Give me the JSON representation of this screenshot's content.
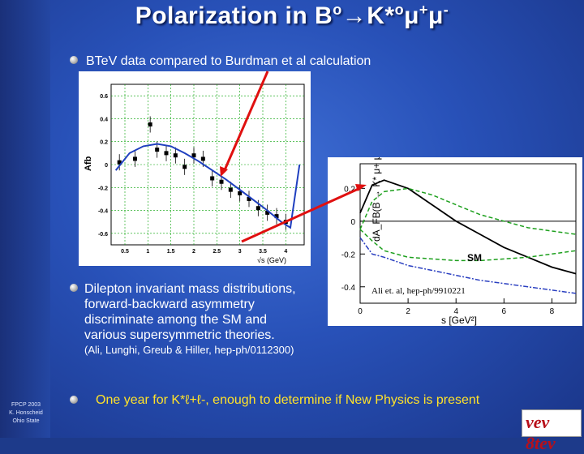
{
  "title": {
    "main": "Polarization in B",
    "sup1": "o",
    "arrow": "→",
    "k": "K*",
    "sup2": "o",
    "mu": "μ",
    "sup3": "+",
    "mu2": "μ",
    "sup4": "-"
  },
  "bullets": {
    "b1": "BTeV data compared to Burdman et al calculation",
    "b2_lines": [
      "Dilepton invariant mass distributions,",
      "forward-backward asymmetry",
      "discriminate among the SM and",
      "various supersymmetric theories."
    ],
    "b2_ref": "(Ali, Lunghi, Greub & Hiller, hep-ph/0112300)",
    "b3": "One year for K*ℓ+ℓ-, enough to determine if New Physics is present"
  },
  "footer": {
    "line1": "FPCP 2003",
    "line2": "K. Honscheid",
    "line3": "Ohio State"
  },
  "logo": {
    "text": "vev 8tev"
  },
  "left_plot": {
    "ylabel": "Afb",
    "xlabel": "√s (GeV)",
    "yticks": [
      "0.6",
      "0.4",
      "0.2",
      "0",
      "-0.2",
      "-0.4",
      "-0.6"
    ],
    "xticks": [
      "0.5",
      "1",
      "1.5",
      "2",
      "2.5",
      "3",
      "3.5",
      "4"
    ]
  },
  "right_plot": {
    "ylabel": "dA_FB(B → K* μ+ μ-)/ds",
    "xlabel": "s [GeV²]",
    "yticks": [
      "0.2",
      "0",
      "-0.2",
      "-0.4"
    ],
    "xticks": [
      "0",
      "2",
      "4",
      "6",
      "8"
    ],
    "label_sm": "SM",
    "caption": "Ali et. al, hep-ph/9910221"
  },
  "chart_data": [
    {
      "type": "scatter",
      "xlabel": "√s (GeV)",
      "ylabel": "Afb",
      "xlim": [
        0.2,
        4.4
      ],
      "ylim": [
        -0.7,
        0.7
      ],
      "series": [
        {
          "values": [
            [
              0.38,
              0.02
            ],
            [
              0.72,
              0.05
            ],
            [
              1.05,
              0.35
            ],
            [
              1.2,
              0.13
            ],
            [
              1.4,
              0.1
            ],
            [
              1.6,
              0.08
            ],
            [
              1.8,
              -0.02
            ],
            [
              2.0,
              0.08
            ],
            [
              2.2,
              0.05
            ],
            [
              2.4,
              -0.12
            ],
            [
              2.6,
              -0.15
            ],
            [
              2.8,
              -0.22
            ],
            [
              3.0,
              -0.25
            ],
            [
              3.2,
              -0.3
            ],
            [
              3.4,
              -0.38
            ],
            [
              3.6,
              -0.42
            ],
            [
              3.8,
              -0.45
            ],
            [
              4.0,
              -0.5
            ]
          ]
        },
        {
          "values": [
            [
              0.3,
              -0.05
            ],
            [
              0.6,
              0.1
            ],
            [
              0.9,
              0.16
            ],
            [
              1.2,
              0.18
            ],
            [
              1.5,
              0.16
            ],
            [
              1.8,
              0.1
            ],
            [
              2.1,
              0.03
            ],
            [
              2.4,
              -0.05
            ],
            [
              2.7,
              -0.13
            ],
            [
              3.0,
              -0.22
            ],
            [
              3.3,
              -0.31
            ],
            [
              3.6,
              -0.4
            ],
            [
              3.9,
              -0.5
            ],
            [
              4.1,
              -0.55
            ],
            [
              4.3,
              0.0
            ]
          ]
        }
      ]
    },
    {
      "type": "line",
      "xlabel": "s [GeV²]",
      "xlim": [
        0,
        9
      ],
      "ylim": [
        -0.5,
        0.35
      ],
      "series": [
        {
          "name": "SM",
          "x": [
            0,
            0.5,
            1,
            2,
            3,
            4,
            5,
            6,
            7,
            8,
            9
          ],
          "values": [
            0.05,
            0.22,
            0.25,
            0.2,
            0.1,
            0.0,
            -0.08,
            -0.16,
            -0.22,
            -0.28,
            -0.32
          ]
        },
        {
          "x": [
            0,
            0.5,
            1,
            2,
            3,
            4,
            5,
            6,
            7,
            8,
            9
          ],
          "values": [
            -0.05,
            0.12,
            0.18,
            0.2,
            0.16,
            0.1,
            0.04,
            0.0,
            -0.04,
            -0.06,
            -0.08
          ]
        },
        {
          "x": [
            0,
            0.5,
            1,
            2,
            3,
            4,
            5,
            6,
            7,
            8,
            9
          ],
          "values": [
            -0.05,
            -0.12,
            -0.18,
            -0.22,
            -0.23,
            -0.24,
            -0.24,
            -0.23,
            -0.22,
            -0.2,
            -0.18
          ]
        },
        {
          "x": [
            0,
            0.5,
            1,
            2,
            3,
            4,
            5,
            6,
            7,
            8,
            9
          ],
          "values": [
            -0.1,
            -0.2,
            -0.22,
            -0.27,
            -0.3,
            -0.33,
            -0.36,
            -0.38,
            -0.4,
            -0.42,
            -0.44
          ]
        }
      ]
    }
  ]
}
